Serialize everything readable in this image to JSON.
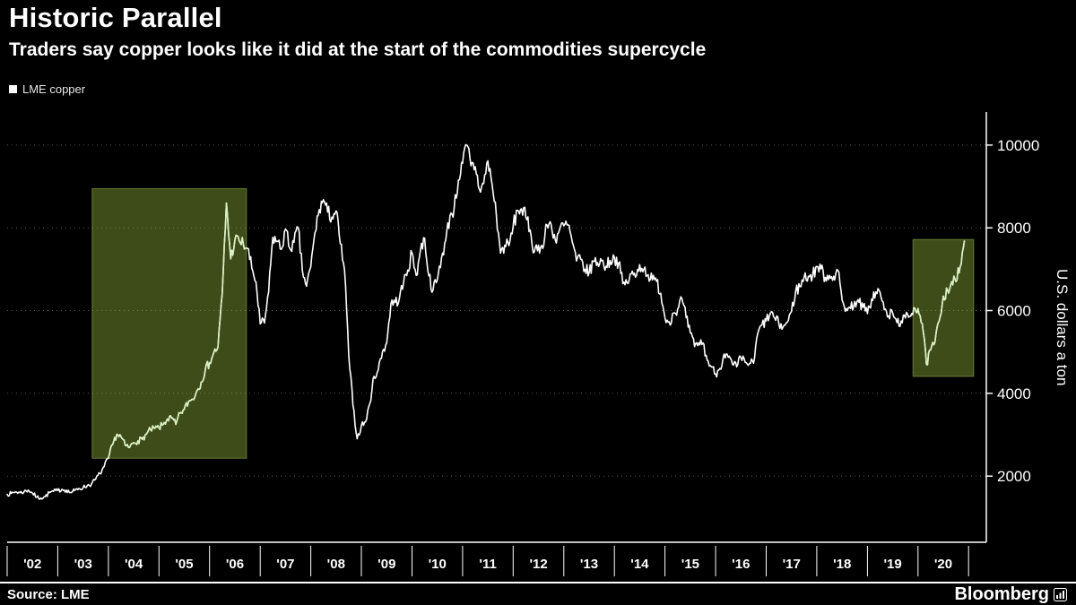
{
  "header": {
    "title": "Historic Parallel",
    "subtitle": "Traders say copper looks like it did at the start of the commodities supercycle"
  },
  "legend": {
    "label": "LME copper",
    "swatch_color": "#ffffff"
  },
  "footer": {
    "source": "Source: LME",
    "brand": "Bloomberg"
  },
  "chart_data": {
    "type": "line",
    "title": "Historic Parallel",
    "subtitle": "Traders say copper looks like it did at the start of the commodities supercycle",
    "ylabel": "U.S. dollars a ton",
    "xlabel": "",
    "ylim": [
      400,
      10800
    ],
    "xlim": [
      2002,
      2021.35
    ],
    "yticks": [
      2000,
      4000,
      6000,
      8000,
      10000
    ],
    "xticklabels": [
      "'02",
      "'03",
      "'04",
      "'05",
      "'06",
      "'07",
      "'08",
      "'09",
      "'10",
      "'11",
      "'12",
      "'13",
      "'14",
      "'15",
      "'16",
      "'17",
      "'18",
      "'19",
      "'20"
    ],
    "grid": "horizontal-dotted",
    "legend_position": "top-left",
    "colors": {
      "background": "#000000",
      "line": "#ffffff",
      "line_in_highlight": "#d9f0c0",
      "highlight_fill": "#9abd3f",
      "grid": "#555555",
      "axis": "#ffffff"
    },
    "series": [
      {
        "name": "LME copper",
        "color": "#ffffff",
        "x_start": 2002,
        "points_per_year": 12,
        "values": [
          1560,
          1580,
          1620,
          1600,
          1620,
          1660,
          1590,
          1490,
          1470,
          1500,
          1600,
          1630,
          1650,
          1680,
          1660,
          1600,
          1650,
          1700,
          1720,
          1770,
          1810,
          1930,
          2060,
          2230,
          2430,
          2760,
          3010,
          2950,
          2740,
          2690,
          2810,
          2850,
          2890,
          3010,
          3120,
          3150,
          3170,
          3250,
          3380,
          3400,
          3250,
          3520,
          3610,
          3800,
          3860,
          4060,
          4270,
          4580,
          4740,
          4980,
          5120,
          6400,
          8600,
          7250,
          7710,
          7690,
          7600,
          7500,
          7030,
          6690,
          5680,
          5700,
          6450,
          7770,
          7680,
          7480,
          7970,
          7510,
          7650,
          8000,
          6970,
          6590,
          7060,
          7890,
          8440,
          8680,
          8380,
          8260,
          8410,
          7620,
          6990,
          4930,
          3720,
          2900,
          3220,
          3310,
          3750,
          4410,
          4570,
          5010,
          5220,
          6170,
          6200,
          6290,
          6680,
          6980,
          7390,
          6850,
          7460,
          7750,
          6840,
          6500,
          6740,
          7280,
          7700,
          8290,
          8470,
          9150,
          9560,
          10000,
          9500,
          9480,
          8930,
          9070,
          9620,
          9050,
          8320,
          7390,
          7580,
          7570,
          8040,
          8420,
          8460,
          8260,
          7950,
          7420,
          7580,
          7500,
          8070,
          8080,
          7700,
          7960,
          8050,
          8070,
          7660,
          7200,
          7240,
          7000,
          6910,
          7190,
          7160,
          7200,
          7070,
          7210,
          7290,
          7150,
          6650,
          6670,
          6890,
          6810,
          7110,
          7000,
          6870,
          6740,
          6710,
          6420,
          5830,
          5730,
          5940,
          6040,
          6290,
          5830,
          5460,
          5130,
          5220,
          5220,
          4800,
          4640,
          4470,
          4600,
          4950,
          4870,
          4700,
          4640,
          4860,
          4750,
          4720,
          4730,
          5450,
          5660,
          5750,
          5940,
          5820,
          5680,
          5600,
          5720,
          5980,
          6480,
          6580,
          6810,
          6830,
          6840,
          7070,
          7010,
          6800,
          6850,
          6830,
          6970,
          6250,
          6050,
          6050,
          6220,
          6200,
          6080,
          5930,
          6280,
          6450,
          6440,
          6020,
          5870,
          5940,
          5710,
          5750,
          5820,
          5860,
          6070,
          6050,
          5690,
          4700,
          5050,
          5230,
          5740,
          6350,
          6500,
          6700,
          6700,
          7060,
          7680
        ]
      }
    ],
    "highlights": [
      {
        "x0": 2003.68,
        "x1": 2006.73,
        "y0": 2430,
        "y1": 8950
      },
      {
        "x0": 2019.9,
        "x1": 2021.1,
        "y0": 4410,
        "y1": 7720
      }
    ]
  }
}
